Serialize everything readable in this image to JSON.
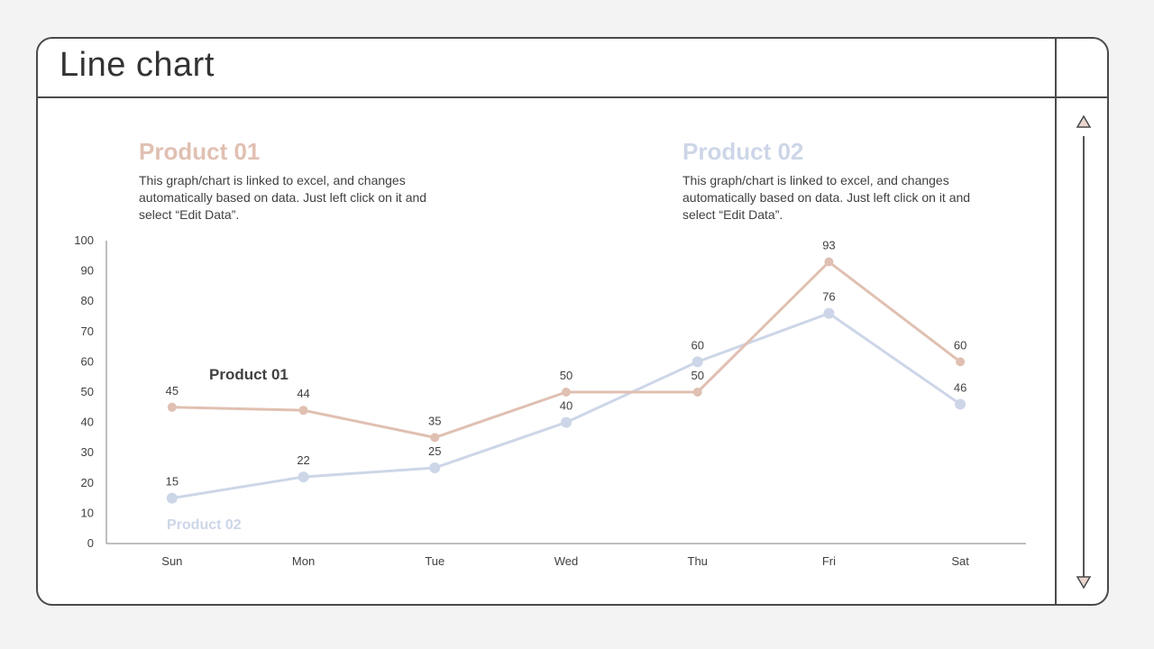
{
  "page": {
    "title": "Line chart"
  },
  "colors": {
    "product01": "#e0c0b2",
    "product02": "#cdd6e8",
    "frame": "#4a4a4a",
    "text": "#404040"
  },
  "products": [
    {
      "heading_word": "Product",
      "heading_num": "01",
      "description": "This graph/chart is linked to excel, and changes automatically based on data. Just left click on it and select “Edit Data”."
    },
    {
      "heading_word": "Product",
      "heading_num": "02",
      "description": "This graph/chart is linked to excel, and changes automatically based on data. Just left click on it and select “Edit Data”."
    }
  ],
  "chart_data": {
    "type": "line",
    "title": "Line chart",
    "categories": [
      "Sun",
      "Mon",
      "Tue",
      "Wed",
      "Thu",
      "Fri",
      "Sat"
    ],
    "series": [
      {
        "name": "Product 01",
        "values": [
          45,
          44,
          35,
          50,
          50,
          93,
          60
        ]
      },
      {
        "name": "Product 02",
        "values": [
          15,
          22,
          25,
          40,
          60,
          76,
          46
        ]
      }
    ],
    "ylim": [
      0,
      100
    ],
    "yticks": [
      0,
      10,
      20,
      30,
      40,
      50,
      60,
      70,
      80,
      90,
      100
    ],
    "xlabel": "",
    "ylabel": "",
    "grid": false,
    "data_labels": true
  }
}
